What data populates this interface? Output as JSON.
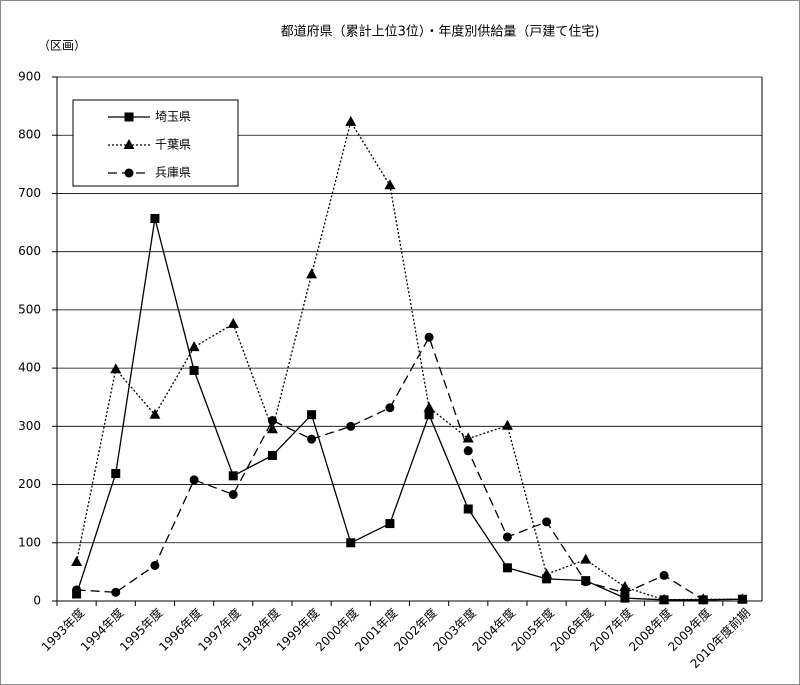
{
  "chart_data": {
    "type": "line",
    "title": "都道府県（累計上位3位）・年度別供給量（戸建て住宅)",
    "y_label": "（区画）",
    "categories": [
      "1993年度",
      "1994年度",
      "1995年度",
      "1996年度",
      "1997年度",
      "1998年度",
      "1999年度",
      "2000年度",
      "2001年度",
      "2002年度",
      "2003年度",
      "2004年度",
      "2005年度",
      "2006年度",
      "2007年度",
      "2008年度",
      "2009年度",
      "2010年度前期"
    ],
    "series": [
      {
        "name": "埼玉県",
        "color": "#000000",
        "dash": "none",
        "marker": "square",
        "values": [
          12,
          219,
          657,
          396,
          215,
          250,
          320,
          100,
          133,
          320,
          158,
          57,
          38,
          35,
          5,
          2,
          2,
          3
        ]
      },
      {
        "name": "千葉県",
        "color": "#000000",
        "dash": "2,2",
        "marker": "triangle",
        "values": [
          67,
          398,
          320,
          436,
          476,
          295,
          561,
          823,
          714,
          332,
          279,
          301,
          46,
          71,
          24,
          2,
          3,
          3
        ]
      },
      {
        "name": "兵庫県",
        "color": "#000000",
        "dash": "9,5",
        "marker": "circle",
        "values": [
          19,
          15,
          61,
          208,
          183,
          310,
          278,
          300,
          332,
          453,
          258,
          110,
          136,
          33,
          14,
          44,
          2,
          3
        ]
      }
    ],
    "ylim": [
      0,
      900
    ],
    "yticks": [
      0,
      100,
      200,
      300,
      400,
      500,
      600,
      700,
      800,
      900
    ],
    "grid": true
  }
}
